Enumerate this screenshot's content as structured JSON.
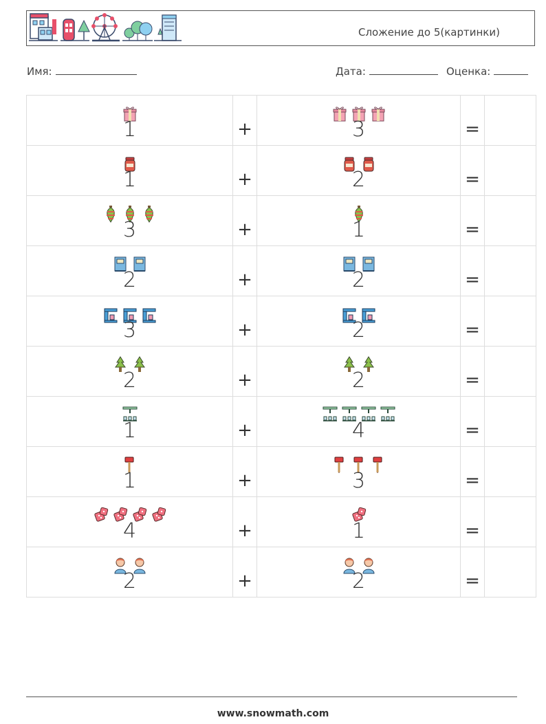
{
  "header": {
    "title": "Сложение до 5(картинки)",
    "icons": [
      "houses-icon",
      "phone-booth-icon",
      "tree-icon",
      "ferris-wheel-icon",
      "trees-icon",
      "office-building-icon"
    ]
  },
  "meta": {
    "name_label": "Имя:",
    "date_label": "Дата:",
    "grade_label": "Оценка:"
  },
  "problems": [
    {
      "a": "1",
      "b": "3",
      "icon": "gift-icon",
      "plus": "+",
      "equals": "="
    },
    {
      "a": "1",
      "b": "2",
      "icon": "jam-jar-icon",
      "plus": "+",
      "equals": "="
    },
    {
      "a": "3",
      "b": "1",
      "icon": "christmas-ornament-icon",
      "plus": "+",
      "equals": "="
    },
    {
      "a": "2",
      "b": "2",
      "icon": "book-icon",
      "plus": "+",
      "equals": "="
    },
    {
      "a": "3",
      "b": "2",
      "icon": "coffee-machine-icon",
      "plus": "+",
      "equals": "="
    },
    {
      "a": "2",
      "b": "2",
      "icon": "fir-tree-icon",
      "plus": "+",
      "equals": "="
    },
    {
      "a": "1",
      "b": "4",
      "icon": "playground-icon",
      "plus": "+",
      "equals": "="
    },
    {
      "a": "1",
      "b": "3",
      "icon": "axe-icon",
      "plus": "+",
      "equals": "="
    },
    {
      "a": "4",
      "b": "1",
      "icon": "dice-icon",
      "plus": "+",
      "equals": "="
    },
    {
      "a": "2",
      "b": "2",
      "icon": "person-icon",
      "plus": "+",
      "equals": "="
    }
  ],
  "footer": {
    "url": "www.snowmath.com"
  }
}
